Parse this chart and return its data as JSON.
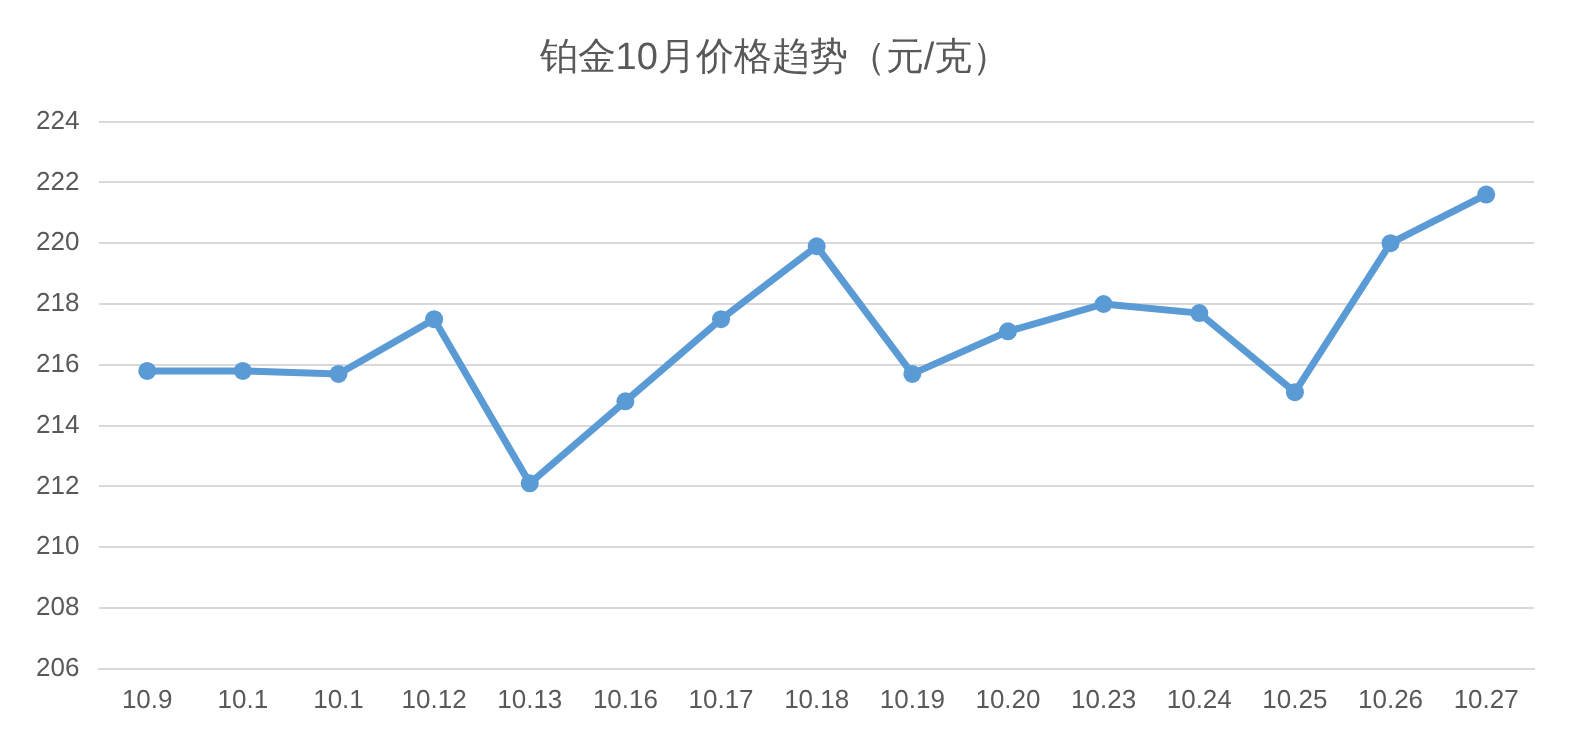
{
  "chart_data": {
    "type": "line",
    "title": "铂金10月价格趋势（元/克）",
    "categories": [
      "10.9",
      "10.1",
      "10.1",
      "10.12",
      "10.13",
      "10.16",
      "10.17",
      "10.18",
      "10.19",
      "10.20",
      "10.23",
      "10.24",
      "10.25",
      "10.26",
      "10.27"
    ],
    "series": [
      {
        "color": "#5b9bd5",
        "values": [
          215.8,
          215.8,
          215.7,
          217.5,
          212.1,
          214.8,
          217.5,
          219.9,
          215.7,
          217.1,
          218.0,
          217.7,
          215.1,
          220.0,
          221.6
        ]
      }
    ],
    "ylim": [
      206,
      224
    ],
    "yticks": [
      206,
      208,
      210,
      212,
      214,
      216,
      218,
      220,
      222,
      224
    ],
    "grid": "y",
    "legend": false,
    "marker": "circle",
    "line_style": "solid"
  }
}
